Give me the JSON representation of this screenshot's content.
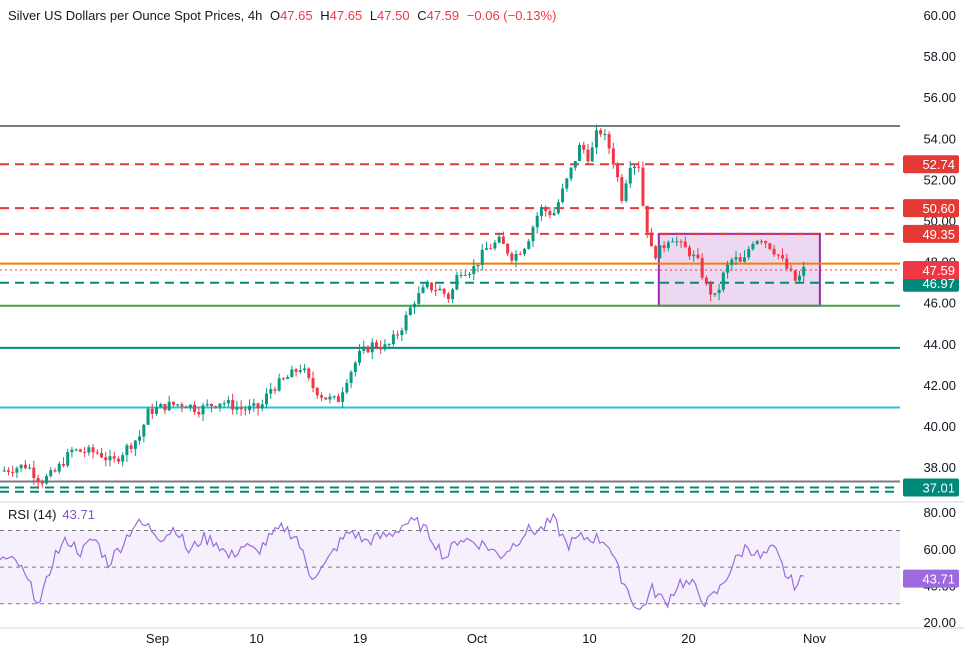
{
  "legend": {
    "symbol": "Silver US Dollars per Ounce Spot Prices, 4h",
    "o_label": "O",
    "o": "47.65",
    "h_label": "H",
    "h": "47.65",
    "l_label": "L",
    "l": "47.50",
    "c_label": "C",
    "c": "47.59",
    "change": "−0.06 (−0.13%)"
  },
  "rsi": {
    "label": "RSI (14)",
    "value": "43.71"
  },
  "colors": {
    "up": "#089981",
    "down": "#f23645",
    "resistance": "#e53935",
    "orange": "#f57c00",
    "teal_dashed": "#00897b",
    "green": "#43a047",
    "dark_teal": "#00897b",
    "cyan": "#26c6da",
    "gray": "#787b86",
    "box": "#9c27b0",
    "rsi": "#9c6ade"
  },
  "chart_data": {
    "type": "candlestick",
    "title": "Silver US Dollars per Ounce Spot Prices, 4h",
    "ylim": [
      36.6,
      60.8
    ],
    "price_ticks": [
      "38.00",
      "40.00",
      "42.00",
      "44.00",
      "46.00",
      "48.00",
      "50.00",
      "52.00",
      "54.00",
      "56.00",
      "58.00",
      "60.00"
    ],
    "x_ticks": [
      "Sep",
      "10",
      "19",
      "Oct",
      "10",
      "20",
      "Nov"
    ],
    "horizontal_levels": [
      {
        "price": 54.6,
        "style": "solid",
        "color": "gray"
      },
      {
        "price": 52.74,
        "style": "dashed",
        "color": "resistance",
        "tag": "52.74"
      },
      {
        "price": 50.6,
        "style": "dashed",
        "color": "resistance",
        "tag": "50.60"
      },
      {
        "price": 49.35,
        "style": "dashed",
        "color": "resistance",
        "tag": "49.35"
      },
      {
        "price": 47.9,
        "style": "solid",
        "color": "orange"
      },
      {
        "price": 46.97,
        "style": "dashed",
        "color": "teal_dashed",
        "tag": "46.97"
      },
      {
        "price": 45.85,
        "style": "solid",
        "color": "green"
      },
      {
        "price": 43.8,
        "style": "solid",
        "color": "dark_teal"
      },
      {
        "price": 40.9,
        "style": "solid",
        "color": "cyan"
      },
      {
        "price": 37.3,
        "style": "solid",
        "color": "gray"
      },
      {
        "price": 37.01,
        "style": "dashed",
        "color": "teal_dashed",
        "tag": "37.01"
      },
      {
        "price": 36.8,
        "style": "dashed",
        "color": "teal_dashed"
      }
    ],
    "last_price": {
      "price": 47.59,
      "tag": "47.59"
    },
    "range_box": {
      "x0": 0.732,
      "x1": 0.911,
      "y0": 49.35,
      "y1": 45.85
    },
    "price_path": [
      [
        0.0,
        37.8
      ],
      [
        0.03,
        38.1
      ],
      [
        0.045,
        37.3
      ],
      [
        0.06,
        37.7
      ],
      [
        0.08,
        38.8
      ],
      [
        0.11,
        38.7
      ],
      [
        0.125,
        38.2
      ],
      [
        0.14,
        38.9
      ],
      [
        0.155,
        39.5
      ],
      [
        0.165,
        40.7
      ],
      [
        0.185,
        41.0
      ],
      [
        0.205,
        41.1
      ],
      [
        0.22,
        40.8
      ],
      [
        0.245,
        41.2
      ],
      [
        0.27,
        40.8
      ],
      [
        0.29,
        40.9
      ],
      [
        0.3,
        41.8
      ],
      [
        0.315,
        42.2
      ],
      [
        0.335,
        42.9
      ],
      [
        0.345,
        42.0
      ],
      [
        0.36,
        41.4
      ],
      [
        0.375,
        41.2
      ],
      [
        0.385,
        42.3
      ],
      [
        0.4,
        43.5
      ],
      [
        0.415,
        44.0
      ],
      [
        0.43,
        43.8
      ],
      [
        0.445,
        44.7
      ],
      [
        0.46,
        46.1
      ],
      [
        0.475,
        46.8
      ],
      [
        0.49,
        46.6
      ],
      [
        0.5,
        46.2
      ],
      [
        0.51,
        47.6
      ],
      [
        0.525,
        47.6
      ],
      [
        0.54,
        48.6
      ],
      [
        0.555,
        49.0
      ],
      [
        0.57,
        48.2
      ],
      [
        0.585,
        48.9
      ],
      [
        0.6,
        50.6
      ],
      [
        0.615,
        50.3
      ],
      [
        0.625,
        51.4
      ],
      [
        0.635,
        52.5
      ],
      [
        0.645,
        53.7
      ],
      [
        0.655,
        53.0
      ],
      [
        0.665,
        54.5
      ],
      [
        0.675,
        53.8
      ],
      [
        0.685,
        52.4
      ],
      [
        0.69,
        51.0
      ],
      [
        0.7,
        52.8
      ],
      [
        0.71,
        52.7
      ],
      [
        0.715,
        50.5
      ],
      [
        0.725,
        48.3
      ],
      [
        0.735,
        48.6
      ],
      [
        0.745,
        49.3
      ],
      [
        0.755,
        48.8
      ],
      [
        0.765,
        48.5
      ],
      [
        0.775,
        48.0
      ],
      [
        0.785,
        46.8
      ],
      [
        0.795,
        46.2
      ],
      [
        0.805,
        47.5
      ],
      [
        0.815,
        48.2
      ],
      [
        0.825,
        47.8
      ],
      [
        0.835,
        49.0
      ],
      [
        0.845,
        49.2
      ],
      [
        0.855,
        48.8
      ],
      [
        0.865,
        48.3
      ],
      [
        0.875,
        47.6
      ],
      [
        0.885,
        47.0
      ],
      [
        0.893,
        47.6
      ]
    ],
    "rsi_ylim": [
      20,
      80
    ],
    "rsi_ticks": [
      "20.00",
      "40.00",
      "60.00",
      "80.00"
    ],
    "rsi_bands": [
      70,
      50,
      30
    ],
    "rsi_path": [
      [
        0.0,
        55
      ],
      [
        0.02,
        52
      ],
      [
        0.035,
        38
      ],
      [
        0.045,
        30
      ],
      [
        0.06,
        56
      ],
      [
        0.075,
        65
      ],
      [
        0.09,
        58
      ],
      [
        0.105,
        66
      ],
      [
        0.12,
        52
      ],
      [
        0.135,
        62
      ],
      [
        0.15,
        74
      ],
      [
        0.165,
        72
      ],
      [
        0.18,
        66
      ],
      [
        0.195,
        72
      ],
      [
        0.21,
        58
      ],
      [
        0.225,
        66
      ],
      [
        0.24,
        64
      ],
      [
        0.255,
        55
      ],
      [
        0.27,
        62
      ],
      [
        0.285,
        58
      ],
      [
        0.3,
        66
      ],
      [
        0.315,
        72
      ],
      [
        0.33,
        66
      ],
      [
        0.345,
        45
      ],
      [
        0.36,
        50
      ],
      [
        0.375,
        62
      ],
      [
        0.39,
        70
      ],
      [
        0.405,
        64
      ],
      [
        0.42,
        66
      ],
      [
        0.435,
        68
      ],
      [
        0.45,
        74
      ],
      [
        0.465,
        74
      ],
      [
        0.48,
        66
      ],
      [
        0.495,
        55
      ],
      [
        0.51,
        66
      ],
      [
        0.525,
        64
      ],
      [
        0.54,
        62
      ],
      [
        0.555,
        56
      ],
      [
        0.57,
        62
      ],
      [
        0.585,
        70
      ],
      [
        0.6,
        70
      ],
      [
        0.615,
        76
      ],
      [
        0.63,
        62
      ],
      [
        0.645,
        66
      ],
      [
        0.66,
        66
      ],
      [
        0.675,
        64
      ],
      [
        0.685,
        50
      ],
      [
        0.695,
        40
      ],
      [
        0.71,
        25
      ],
      [
        0.725,
        38
      ],
      [
        0.74,
        30
      ],
      [
        0.755,
        42
      ],
      [
        0.77,
        40
      ],
      [
        0.785,
        30
      ],
      [
        0.8,
        38
      ],
      [
        0.815,
        52
      ],
      [
        0.83,
        62
      ],
      [
        0.845,
        55
      ],
      [
        0.86,
        60
      ],
      [
        0.875,
        44
      ],
      [
        0.885,
        40
      ],
      [
        0.893,
        44
      ]
    ]
  }
}
